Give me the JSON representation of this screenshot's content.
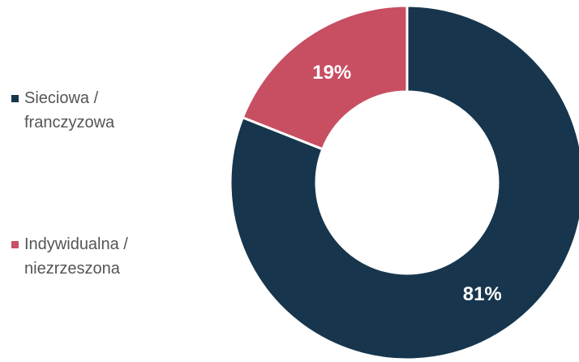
{
  "chart_data": {
    "type": "donut",
    "categories": [
      "Sieciowa / franczyzowa",
      "Indywidualna / niezrzeszona"
    ],
    "values": [
      81,
      19
    ],
    "value_labels": [
      "81%",
      "19%"
    ],
    "colors": [
      "#17364d",
      "#c84e62"
    ],
    "legend": "left"
  }
}
